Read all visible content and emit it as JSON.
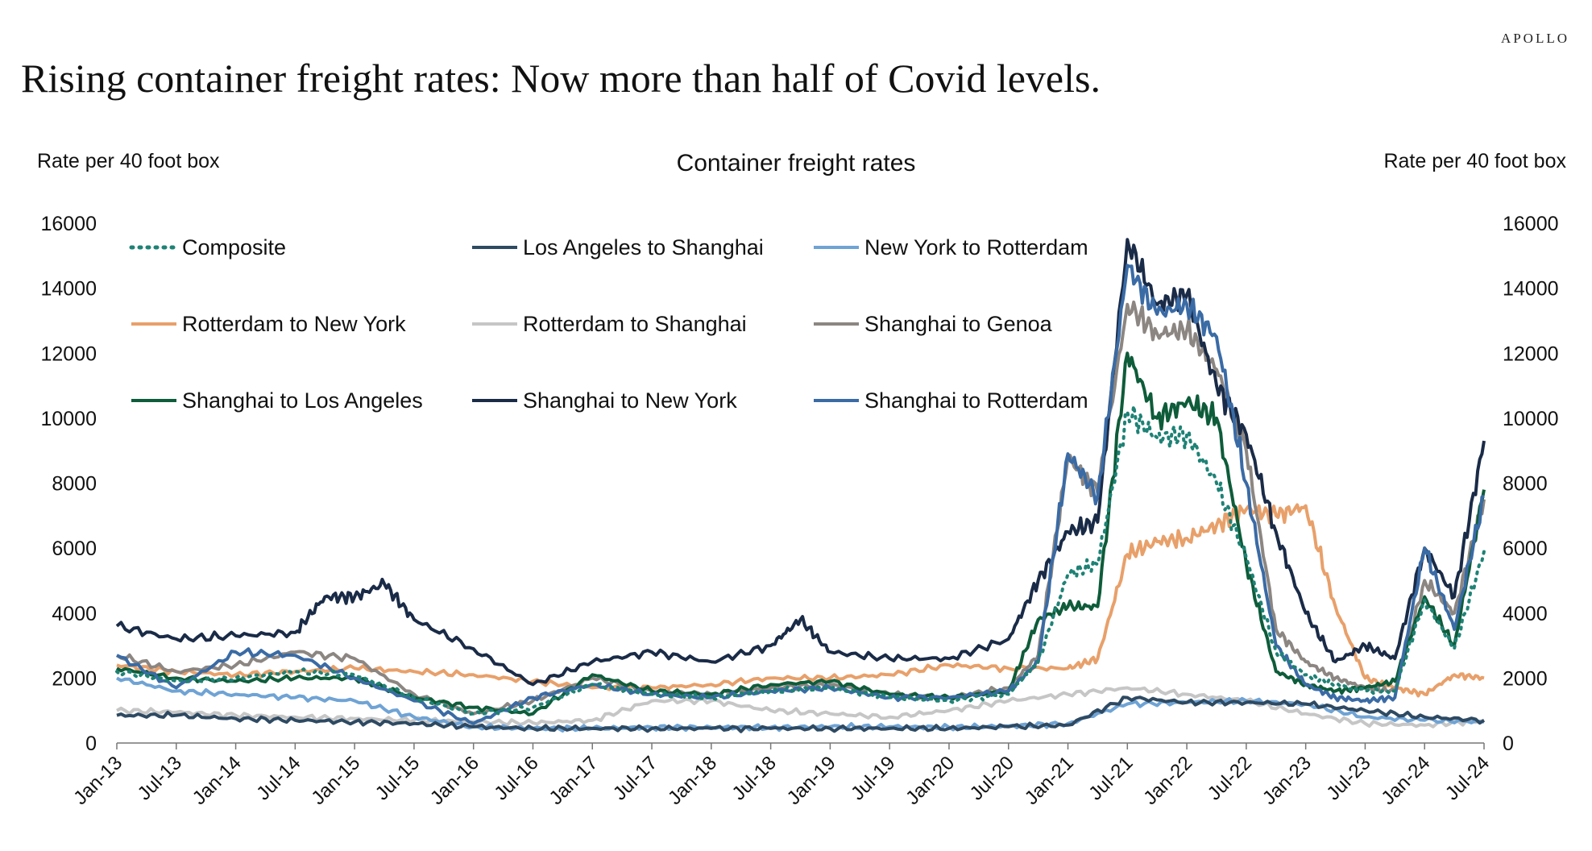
{
  "brand": "APOLLO",
  "headline": "Rising container freight rates: Now more than half of Covid levels.",
  "chart_data": {
    "type": "line",
    "title": "Container freight rates",
    "ylabel_left": "Rate per 40 foot box",
    "ylabel_right": "Rate per 40 foot box",
    "ylim": [
      0,
      16000
    ],
    "y_ticks": [
      "0",
      "2000",
      "4000",
      "6000",
      "8000",
      "10000",
      "12000",
      "14000",
      "16000"
    ],
    "x_ticks": [
      "Jan-13",
      "Jul-13",
      "Jan-14",
      "Jul-14",
      "Jan-15",
      "Jul-15",
      "Jan-16",
      "Jul-16",
      "Jan-17",
      "Jul-17",
      "Jan-18",
      "Jul-18",
      "Jan-19",
      "Jul-19",
      "Jan-20",
      "Jul-20",
      "Jan-21",
      "Jul-21",
      "Jan-22",
      "Jul-22",
      "Jan-23",
      "Jul-23",
      "Jan-24",
      "Jul-24"
    ],
    "grid": false,
    "legend_position": "top-left",
    "series": [
      {
        "name": "Rotterdam to New York",
        "color": "#E8A06A",
        "dash": "solid",
        "x": [
          "Jan-13",
          "Jul-13",
          "Jan-14",
          "Jul-14",
          "Jan-15",
          "Jul-15",
          "Jan-16",
          "Jul-16",
          "Jan-17",
          "Jul-17",
          "Jan-18",
          "Jul-18",
          "Jan-19",
          "Jul-19",
          "Jan-20",
          "Jul-20",
          "Jan-21",
          "Apr-21",
          "Jul-21",
          "Oct-21",
          "Jan-22",
          "Apr-22",
          "Jul-22",
          "Oct-22",
          "Jan-23",
          "Apr-23",
          "Jul-23",
          "Oct-23",
          "Jan-24",
          "Apr-24",
          "Jul-24"
        ],
        "y": [
          2400,
          2200,
          2100,
          2200,
          2300,
          2200,
          2100,
          1900,
          1700,
          1700,
          1800,
          2000,
          2000,
          2100,
          2400,
          2300,
          2300,
          2600,
          5800,
          6200,
          6300,
          6700,
          7200,
          7000,
          7300,
          4200,
          2000,
          1700,
          1500,
          2100,
          2000
        ]
      },
      {
        "name": "Rotterdam to Shanghai",
        "color": "#C6C6C6",
        "dash": "solid",
        "x": [
          "Jan-13",
          "Jul-13",
          "Jan-14",
          "Jul-14",
          "Jan-15",
          "Jul-15",
          "Jan-16",
          "Jul-16",
          "Jan-17",
          "Jul-17",
          "Jan-18",
          "Jul-18",
          "Jan-19",
          "Jul-19",
          "Jan-20",
          "Jul-20",
          "Jan-21",
          "Jul-21",
          "Jan-22",
          "Jul-22",
          "Jan-23",
          "Jul-23",
          "Jan-24",
          "Jul-24"
        ],
        "y": [
          1000,
          950,
          850,
          800,
          750,
          700,
          650,
          620,
          700,
          1300,
          1300,
          1000,
          900,
          800,
          1000,
          1300,
          1500,
          1700,
          1500,
          1300,
          900,
          600,
          550,
          700
        ]
      },
      {
        "name": "New York to Rotterdam",
        "color": "#6FA3D4",
        "dash": "solid",
        "x": [
          "Jan-13",
          "Jul-13",
          "Jan-14",
          "Jul-14",
          "Jan-15",
          "Jul-15",
          "Jan-16",
          "Jul-16",
          "Jan-17",
          "Jul-17",
          "Jan-18",
          "Jul-18",
          "Jan-19",
          "Jul-19",
          "Jan-20",
          "Jul-20",
          "Jan-21",
          "Jul-21",
          "Jan-22",
          "Jul-22",
          "Jan-23",
          "Jul-23",
          "Jan-24",
          "Jul-24"
        ],
        "y": [
          2000,
          1600,
          1500,
          1400,
          1300,
          800,
          500,
          450,
          450,
          480,
          480,
          480,
          500,
          500,
          480,
          520,
          600,
          1200,
          1250,
          1300,
          1200,
          800,
          700,
          650
        ]
      },
      {
        "name": "Los Angeles to Shanghai",
        "color": "#2E4A62",
        "dash": "solid",
        "x": [
          "Jan-13",
          "Jul-13",
          "Jan-14",
          "Jul-14",
          "Jan-15",
          "Jul-15",
          "Jan-16",
          "Jul-16",
          "Jan-17",
          "Jul-17",
          "Jan-18",
          "Jul-18",
          "Jan-19",
          "Jul-19",
          "Jan-20",
          "Jul-20",
          "Jan-21",
          "Jul-21",
          "Jan-22",
          "Jul-22",
          "Jan-23",
          "Jul-23",
          "Jan-24",
          "Jul-24"
        ],
        "y": [
          850,
          850,
          750,
          700,
          650,
          600,
          500,
          450,
          450,
          450,
          450,
          450,
          450,
          450,
          450,
          500,
          550,
          1400,
          1250,
          1250,
          1200,
          1000,
          800,
          700
        ]
      },
      {
        "name": "Shanghai to Genoa",
        "color": "#8C8682",
        "dash": "solid",
        "x": [
          "Jan-13",
          "Jul-13",
          "Jan-14",
          "Jul-14",
          "Jan-15",
          "Jul-15",
          "Jan-16",
          "Jul-16",
          "Jan-17",
          "Jul-17",
          "Jan-18",
          "Jul-18",
          "Jan-19",
          "Jul-19",
          "Jan-20",
          "Jul-20",
          "Oct-20",
          "Jan-21",
          "Apr-21",
          "Jul-21",
          "Oct-21",
          "Jan-22",
          "Apr-22",
          "Jul-22",
          "Oct-22",
          "Jan-23",
          "Apr-23",
          "Jul-23",
          "Oct-23",
          "Jan-24",
          "Apr-24",
          "Jul-24"
        ],
        "y": [
          2700,
          2200,
          2400,
          2800,
          2600,
          1500,
          900,
          1300,
          2000,
          1600,
          1500,
          1700,
          1800,
          1500,
          1400,
          1700,
          2700,
          8800,
          7700,
          13500,
          12600,
          12700,
          11500,
          9000,
          3500,
          2500,
          2000,
          1700,
          1600,
          5000,
          4000,
          7500
        ]
      },
      {
        "name": "Shanghai to New York",
        "color": "#1A2B47",
        "dash": "solid",
        "x": [
          "Jan-13",
          "Jul-13",
          "Jan-14",
          "Jul-14",
          "Oct-14",
          "Jan-15",
          "Apr-15",
          "Jul-15",
          "Jan-16",
          "Jul-16",
          "Jan-17",
          "Jul-17",
          "Jan-18",
          "Jul-18",
          "Oct-18",
          "Jan-19",
          "Jul-19",
          "Jan-20",
          "Jul-20",
          "Oct-20",
          "Jan-21",
          "Apr-21",
          "Jul-21",
          "Oct-21",
          "Jan-22",
          "Apr-22",
          "Jul-22",
          "Oct-22",
          "Jan-23",
          "Apr-23",
          "Jul-23",
          "Oct-23",
          "Jan-24",
          "Apr-24",
          "Jul-24"
        ],
        "y": [
          3600,
          3200,
          3300,
          3400,
          4500,
          4500,
          4900,
          3800,
          2900,
          1800,
          2500,
          2800,
          2500,
          3000,
          3800,
          2800,
          2600,
          2600,
          3200,
          5000,
          6500,
          6800,
          15500,
          13500,
          13800,
          11000,
          9500,
          6500,
          4000,
          2500,
          3000,
          2600,
          6000,
          4500,
          9300
        ]
      },
      {
        "name": "Shanghai to Los Angeles",
        "color": "#0E5C3A",
        "dash": "solid",
        "x": [
          "Jan-13",
          "Jul-13",
          "Jan-14",
          "Jul-14",
          "Jan-15",
          "Jul-15",
          "Jan-16",
          "Jul-16",
          "Jan-17",
          "Jul-17",
          "Jan-18",
          "Jul-18",
          "Jan-19",
          "Jul-19",
          "Jan-20",
          "Jul-20",
          "Oct-20",
          "Jan-21",
          "Apr-21",
          "Jul-21",
          "Oct-21",
          "Jan-22",
          "Apr-22",
          "Jul-22",
          "Oct-22",
          "Jan-23",
          "Apr-23",
          "Jul-23",
          "Oct-23",
          "Jan-24",
          "Apr-24",
          "Jul-24"
        ],
        "y": [
          2300,
          2000,
          1900,
          2000,
          2000,
          1400,
          1100,
          900,
          2100,
          1600,
          1500,
          1800,
          1900,
          1500,
          1400,
          1600,
          3800,
          4200,
          4200,
          12000,
          10000,
          10500,
          10000,
          5500,
          2200,
          1800,
          1600,
          1700,
          1900,
          4500,
          3000,
          7800
        ]
      },
      {
        "name": "Shanghai to Rotterdam",
        "color": "#3A6BA5",
        "dash": "solid",
        "x": [
          "Jan-13",
          "Jul-13",
          "Jan-14",
          "Jul-14",
          "Jan-15",
          "Jul-15",
          "Jan-16",
          "Jul-16",
          "Jan-17",
          "Jul-17",
          "Jan-18",
          "Jul-18",
          "Jan-19",
          "Jul-19",
          "Jan-20",
          "Jul-20",
          "Oct-20",
          "Jan-21",
          "Apr-21",
          "Jul-21",
          "Oct-21",
          "Jan-22",
          "Apr-22",
          "Jul-22",
          "Oct-22",
          "Jan-23",
          "Apr-23",
          "Jul-23",
          "Oct-23",
          "Jan-24",
          "Apr-24",
          "Jul-24"
        ],
        "y": [
          2700,
          1700,
          2800,
          2700,
          2000,
          1300,
          600,
          1400,
          1800,
          1500,
          1400,
          1600,
          1700,
          1400,
          1400,
          1600,
          2500,
          8900,
          7600,
          14700,
          13200,
          13500,
          12500,
          8000,
          3000,
          1800,
          1400,
          1300,
          1400,
          6000,
          3500,
          7600
        ]
      },
      {
        "name": "Composite",
        "color": "#1E8275",
        "dash": "dotted",
        "x": [
          "Jan-13",
          "Jul-13",
          "Jan-14",
          "Jul-14",
          "Jan-15",
          "Jul-15",
          "Jan-16",
          "Jul-16",
          "Jan-17",
          "Jul-17",
          "Jan-18",
          "Jul-18",
          "Jan-19",
          "Jul-19",
          "Jan-20",
          "Jul-20",
          "Oct-20",
          "Jan-21",
          "Apr-21",
          "Jul-21",
          "Oct-21",
          "Jan-22",
          "Apr-22",
          "Jul-22",
          "Oct-22",
          "Jan-23",
          "Apr-23",
          "Jul-23",
          "Oct-23",
          "Jan-24",
          "Apr-24",
          "Jul-24"
        ],
        "y": [
          2200,
          1900,
          2000,
          2200,
          2100,
          1400,
          900,
          1100,
          1800,
          1500,
          1400,
          1600,
          1700,
          1400,
          1300,
          1500,
          2500,
          5200,
          5500,
          10200,
          9400,
          9500,
          8000,
          5700,
          2800,
          2100,
          1800,
          1600,
          1600,
          4400,
          2900,
          5900
        ]
      }
    ],
    "legend_layout": [
      "Composite",
      "Los Angeles to Shanghai",
      "New York to Rotterdam",
      "Rotterdam to New York",
      "Rotterdam to Shanghai",
      "Shanghai to Genoa",
      "Shanghai to Los Angeles",
      "Shanghai to New York",
      "Shanghai to Rotterdam"
    ]
  }
}
